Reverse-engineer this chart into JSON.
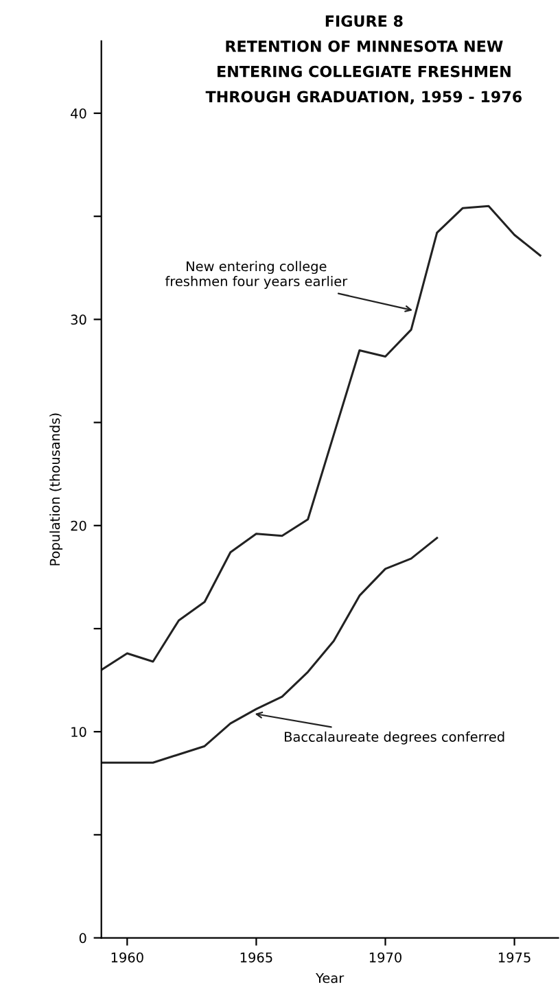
{
  "chart_data": {
    "type": "line",
    "title": "FIGURE 8\nRETENTION OF MINNESOTA NEW\nENTERING COLLEGIATE FRESHMEN\nTHROUGH GRADUATION, 1959 - 1976",
    "xlabel": "Year",
    "ylabel": "Population (thousands)",
    "series": [
      {
        "color": "#222222",
        "x": [
          1959,
          1960,
          1961,
          1962,
          1963,
          1964,
          1965,
          1966,
          1967,
          1968,
          1969,
          1970,
          1971,
          1972,
          1973,
          1974,
          1975,
          1976
        ],
        "values": [
          13.0,
          13.8,
          13.4,
          15.4,
          16.3,
          18.7,
          19.6,
          19.5,
          20.3,
          24.4,
          28.5,
          28.2,
          29.5,
          34.2,
          35.4,
          35.5,
          34.1,
          33.1
        ]
      },
      {
        "color": "#222222",
        "x": [
          1959,
          1960,
          1961,
          1962,
          1963,
          1964,
          1965,
          1966,
          1967,
          1968,
          1969,
          1970,
          1971,
          1972
        ],
        "values": [
          8.5,
          8.5,
          8.5,
          8.9,
          9.3,
          10.4,
          11.1,
          11.7,
          12.9,
          14.4,
          16.6,
          17.9,
          18.4,
          19.4
        ]
      }
    ],
    "annotations": [
      {
        "text": "New entering college\nfreshmen four years earlier",
        "x": 1971.2,
        "y": 30.4
      },
      {
        "text": "Baccalaureate degrees conferred",
        "x": 1964.8,
        "y": 10.9
      }
    ],
    "xlim": [
      1959,
      1976.7
    ],
    "ylim": [
      0,
      43.5
    ],
    "xticks": [
      1960,
      1965,
      1970,
      1975
    ],
    "yticks": [
      0,
      {
        "value": 5,
        "label": null
      },
      10,
      {
        "value": 15,
        "label": null
      },
      20,
      {
        "value": 25,
        "label": null
      },
      30,
      {
        "value": 35,
        "label": null
      },
      40
    ],
    "grid": false,
    "legend": false,
    "marker": "none",
    "line_style": "solid"
  }
}
